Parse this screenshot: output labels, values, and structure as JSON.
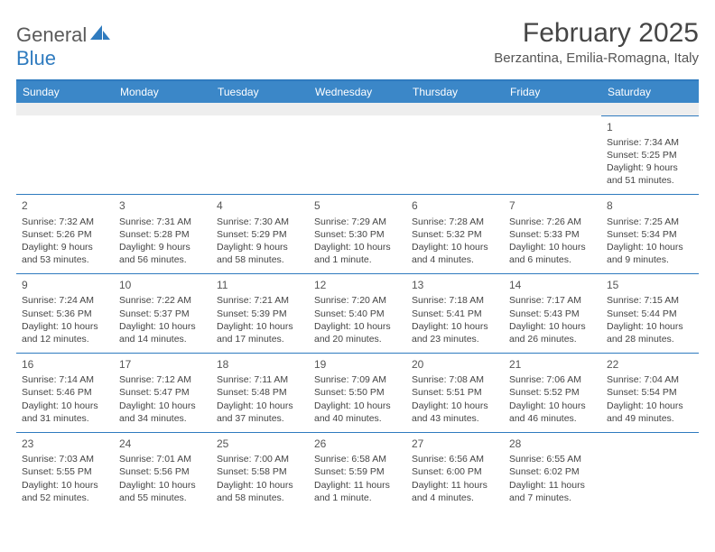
{
  "logo": {
    "text1": "General",
    "text2": "Blue"
  },
  "title": "February 2025",
  "location": "Berzantina, Emilia-Romagna, Italy",
  "colors": {
    "header_bg": "#3b87c8",
    "rule": "#2f7bbf",
    "blank_bg": "#eeeeee",
    "text": "#444444",
    "title_color": "#454545"
  },
  "day_headers": [
    "Sunday",
    "Monday",
    "Tuesday",
    "Wednesday",
    "Thursday",
    "Friday",
    "Saturday"
  ],
  "weeks": [
    [
      null,
      null,
      null,
      null,
      null,
      null,
      {
        "n": "1",
        "sr": "7:34 AM",
        "ss": "5:25 PM",
        "dl": "9 hours and 51 minutes."
      }
    ],
    [
      {
        "n": "2",
        "sr": "7:32 AM",
        "ss": "5:26 PM",
        "dl": "9 hours and 53 minutes."
      },
      {
        "n": "3",
        "sr": "7:31 AM",
        "ss": "5:28 PM",
        "dl": "9 hours and 56 minutes."
      },
      {
        "n": "4",
        "sr": "7:30 AM",
        "ss": "5:29 PM",
        "dl": "9 hours and 58 minutes."
      },
      {
        "n": "5",
        "sr": "7:29 AM",
        "ss": "5:30 PM",
        "dl": "10 hours and 1 minute."
      },
      {
        "n": "6",
        "sr": "7:28 AM",
        "ss": "5:32 PM",
        "dl": "10 hours and 4 minutes."
      },
      {
        "n": "7",
        "sr": "7:26 AM",
        "ss": "5:33 PM",
        "dl": "10 hours and 6 minutes."
      },
      {
        "n": "8",
        "sr": "7:25 AM",
        "ss": "5:34 PM",
        "dl": "10 hours and 9 minutes."
      }
    ],
    [
      {
        "n": "9",
        "sr": "7:24 AM",
        "ss": "5:36 PM",
        "dl": "10 hours and 12 minutes."
      },
      {
        "n": "10",
        "sr": "7:22 AM",
        "ss": "5:37 PM",
        "dl": "10 hours and 14 minutes."
      },
      {
        "n": "11",
        "sr": "7:21 AM",
        "ss": "5:39 PM",
        "dl": "10 hours and 17 minutes."
      },
      {
        "n": "12",
        "sr": "7:20 AM",
        "ss": "5:40 PM",
        "dl": "10 hours and 20 minutes."
      },
      {
        "n": "13",
        "sr": "7:18 AM",
        "ss": "5:41 PM",
        "dl": "10 hours and 23 minutes."
      },
      {
        "n": "14",
        "sr": "7:17 AM",
        "ss": "5:43 PM",
        "dl": "10 hours and 26 minutes."
      },
      {
        "n": "15",
        "sr": "7:15 AM",
        "ss": "5:44 PM",
        "dl": "10 hours and 28 minutes."
      }
    ],
    [
      {
        "n": "16",
        "sr": "7:14 AM",
        "ss": "5:46 PM",
        "dl": "10 hours and 31 minutes."
      },
      {
        "n": "17",
        "sr": "7:12 AM",
        "ss": "5:47 PM",
        "dl": "10 hours and 34 minutes."
      },
      {
        "n": "18",
        "sr": "7:11 AM",
        "ss": "5:48 PM",
        "dl": "10 hours and 37 minutes."
      },
      {
        "n": "19",
        "sr": "7:09 AM",
        "ss": "5:50 PM",
        "dl": "10 hours and 40 minutes."
      },
      {
        "n": "20",
        "sr": "7:08 AM",
        "ss": "5:51 PM",
        "dl": "10 hours and 43 minutes."
      },
      {
        "n": "21",
        "sr": "7:06 AM",
        "ss": "5:52 PM",
        "dl": "10 hours and 46 minutes."
      },
      {
        "n": "22",
        "sr": "7:04 AM",
        "ss": "5:54 PM",
        "dl": "10 hours and 49 minutes."
      }
    ],
    [
      {
        "n": "23",
        "sr": "7:03 AM",
        "ss": "5:55 PM",
        "dl": "10 hours and 52 minutes."
      },
      {
        "n": "24",
        "sr": "7:01 AM",
        "ss": "5:56 PM",
        "dl": "10 hours and 55 minutes."
      },
      {
        "n": "25",
        "sr": "7:00 AM",
        "ss": "5:58 PM",
        "dl": "10 hours and 58 minutes."
      },
      {
        "n": "26",
        "sr": "6:58 AM",
        "ss": "5:59 PM",
        "dl": "11 hours and 1 minute."
      },
      {
        "n": "27",
        "sr": "6:56 AM",
        "ss": "6:00 PM",
        "dl": "11 hours and 4 minutes."
      },
      {
        "n": "28",
        "sr": "6:55 AM",
        "ss": "6:02 PM",
        "dl": "11 hours and 7 minutes."
      },
      null
    ]
  ],
  "labels": {
    "sunrise": "Sunrise:",
    "sunset": "Sunset:",
    "daylight": "Daylight:"
  }
}
